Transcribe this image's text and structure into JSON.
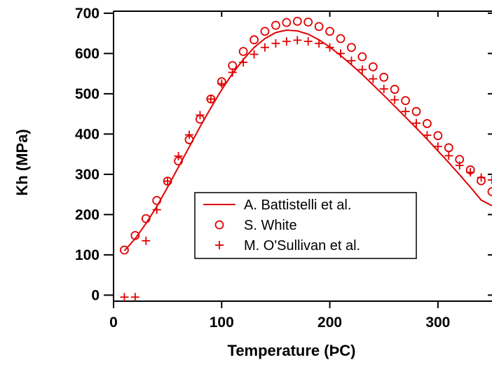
{
  "chart_data": {
    "type": "scatter",
    "title": "",
    "xlabel": "Temperature (ÞC)",
    "ylabel": "Kh (MPa)",
    "xlim": [
      0,
      350
    ],
    "ylim": [
      -15,
      705
    ],
    "xticks": [
      0,
      100,
      200,
      300
    ],
    "yticks": [
      0,
      100,
      200,
      300,
      400,
      500,
      600,
      700
    ],
    "grid": false,
    "legend_position": "center-right",
    "series": [
      {
        "name": "A. Battistelli et al.",
        "style": "line",
        "color": "#e00000",
        "x": [
          10,
          20,
          30,
          40,
          50,
          60,
          70,
          80,
          90,
          100,
          110,
          120,
          130,
          140,
          150,
          160,
          170,
          180,
          190,
          200,
          210,
          220,
          230,
          240,
          250,
          260,
          270,
          280,
          290,
          300,
          310,
          320,
          330,
          340,
          350
        ],
        "y": [
          110,
          140,
          178,
          220,
          268,
          318,
          368,
          418,
          465,
          510,
          550,
          585,
          615,
          637,
          652,
          658,
          656,
          648,
          634,
          616,
          595,
          572,
          548,
          522,
          496,
          469,
          442,
          415,
          387,
          358,
          329,
          299,
          268,
          236,
          222
        ]
      },
      {
        "name": "S. White",
        "style": "circle",
        "color": "#e00000",
        "x": [
          10,
          20,
          30,
          40,
          50,
          60,
          70,
          80,
          90,
          100,
          110,
          120,
          130,
          140,
          150,
          160,
          170,
          180,
          190,
          200,
          210,
          220,
          230,
          240,
          250,
          260,
          270,
          280,
          290,
          300,
          310,
          320,
          330,
          340,
          350
        ],
        "y": [
          112,
          148,
          190,
          235,
          283,
          333,
          386,
          437,
          487,
          530,
          570,
          605,
          634,
          655,
          670,
          677,
          680,
          678,
          667,
          655,
          637,
          615,
          592,
          567,
          541,
          511,
          483,
          456,
          426,
          396,
          366,
          337,
          311,
          284,
          257
        ]
      },
      {
        "name": "M. O'Sullivan et al.",
        "style": "plus",
        "color": "#e00000",
        "x": [
          10,
          20,
          30,
          40,
          50,
          60,
          70,
          80,
          90,
          100,
          110,
          120,
          130,
          140,
          150,
          160,
          170,
          180,
          190,
          200,
          210,
          220,
          230,
          240,
          250,
          260,
          270,
          280,
          290,
          300,
          310,
          320,
          330,
          340,
          350
        ],
        "y": [
          -5,
          -5,
          135,
          212,
          283,
          345,
          398,
          447,
          487,
          525,
          553,
          578,
          598,
          615,
          625,
          630,
          633,
          630,
          625,
          615,
          600,
          582,
          560,
          537,
          512,
          485,
          456,
          427,
          397,
          369,
          346,
          322,
          305,
          292,
          286
        ]
      }
    ]
  }
}
